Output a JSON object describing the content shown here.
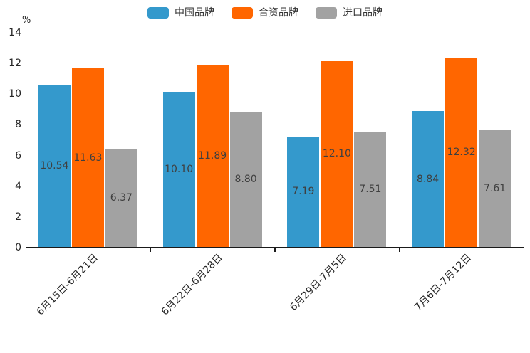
{
  "chart_data": {
    "type": "bar",
    "unit_label": "%",
    "categories": [
      "6月15日-6月21日",
      "6月22日-6月28日",
      "6月29日-7月5日",
      "7月6日-7月12日"
    ],
    "series": [
      {
        "name": "中国品牌",
        "color": "#3499CC",
        "values": [
          10.54,
          10.1,
          7.19,
          8.84
        ]
      },
      {
        "name": "合资品牌",
        "color": "#FF6600",
        "values": [
          11.63,
          11.89,
          12.1,
          12.32
        ]
      },
      {
        "name": "进口品牌",
        "color": "#A2A2A2",
        "values": [
          6.37,
          8.8,
          7.51,
          7.61
        ]
      }
    ],
    "value_labels": [
      [
        "10.54",
        "10.10",
        "7.19",
        "8.84"
      ],
      [
        "11.63",
        "11.89",
        "12.10",
        "12.32"
      ],
      [
        "6.37",
        "8.80",
        "7.51",
        "7.61"
      ]
    ],
    "ylim": [
      0,
      14
    ],
    "yticks": [
      "0",
      "2",
      "4",
      "6",
      "8",
      "10",
      "12",
      "14"
    ],
    "grid": false,
    "legend_position": "top",
    "axis_color": "#1a1a1a",
    "tick_label_color": "#262626",
    "value_label_color": "#3f3f3f"
  }
}
